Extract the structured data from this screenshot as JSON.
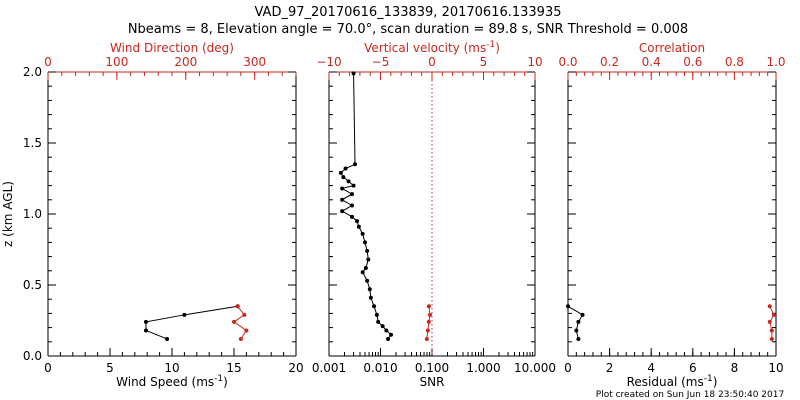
{
  "title_line1": "VAD_97_20170616_133839, 20170616.133935",
  "title_line2": "Nbeams = 8, Elevation angle = 70.0°, scan duration = 89.8 s, SNR Threshold = 0.008",
  "footer": "Plot created on Sun Jun 18 23:50:40 2017",
  "colors": {
    "black": "#000000",
    "red": "#c8281e"
  },
  "chart_data": [
    {
      "type": "line",
      "ylabel": "z (km AGL)",
      "ylim": [
        0,
        2.0
      ],
      "yticks": [
        0.0,
        0.5,
        1.0,
        1.5,
        2.0
      ],
      "yticklabels": [
        "0.0",
        "0.5",
        "1.0",
        "1.5",
        "2.0"
      ],
      "bottom_axis": {
        "label": "Wind Speed (ms",
        "label_sup": "-1",
        "label_end": ")",
        "xlim": [
          0,
          20
        ],
        "ticks": [
          0,
          5,
          10,
          15,
          20
        ],
        "ticklabels": [
          "0",
          "5",
          "10",
          "15",
          "20"
        ],
        "scale": "linear"
      },
      "top_axis": {
        "label": "Wind Direction (deg)",
        "xlim": [
          0,
          360
        ],
        "ticks": [
          0,
          100,
          200,
          300
        ],
        "ticklabels": [
          "0",
          "100",
          "200",
          "300"
        ],
        "scale": "linear"
      },
      "series": [
        {
          "axis": "bottom",
          "color": "#000000",
          "x": [
            15.3,
            11.0,
            7.9,
            7.9,
            9.6
          ],
          "y": [
            0.35,
            0.29,
            0.24,
            0.18,
            0.12
          ]
        },
        {
          "axis": "top",
          "color": "#c8281e",
          "x": [
            275,
            285,
            270,
            288,
            280
          ],
          "y": [
            0.35,
            0.29,
            0.24,
            0.18,
            0.12
          ]
        }
      ]
    },
    {
      "type": "line",
      "ylim": [
        0,
        2.0
      ],
      "bottom_axis": {
        "label": "SNR",
        "xlim": [
          0.001,
          10
        ],
        "ticks": [
          0.001,
          0.01,
          0.1,
          1,
          10
        ],
        "ticklabels": [
          "0.001",
          "0.010",
          "0.100",
          "1.000",
          "10.000"
        ],
        "scale": "log"
      },
      "top_axis": {
        "label": "Vertical velocity (ms",
        "label_sup": "-1",
        "label_end": ")",
        "xlim": [
          -10,
          10
        ],
        "ticks": [
          -10,
          -5,
          0,
          5,
          10
        ],
        "ticklabels": [
          "−10",
          "−5",
          "0",
          "5",
          "10"
        ],
        "scale": "linear",
        "reference_line": 0
      },
      "series": [
        {
          "axis": "bottom",
          "color": "#000000",
          "x": [
            0.014,
            0.016,
            0.013,
            0.011,
            0.009,
            0.0085,
            0.0075,
            0.0065,
            0.0062,
            0.0055,
            0.0045,
            0.0052,
            0.0058,
            0.0055,
            0.005,
            0.0045,
            0.0038,
            0.0035,
            0.0028,
            0.0018,
            0.0028,
            0.0018,
            0.0028,
            0.0018,
            0.003,
            0.0024,
            0.0019,
            0.0017,
            0.0021,
            0.0032,
            0.003
          ],
          "y": [
            0.12,
            0.15,
            0.18,
            0.21,
            0.24,
            0.29,
            0.35,
            0.41,
            0.47,
            0.53,
            0.59,
            0.62,
            0.68,
            0.74,
            0.8,
            0.86,
            0.91,
            0.95,
            0.98,
            1.02,
            1.06,
            1.1,
            1.14,
            1.18,
            1.2,
            1.23,
            1.26,
            1.29,
            1.32,
            1.35,
            1.99
          ]
        },
        {
          "axis": "top",
          "color": "#c8281e",
          "x": [
            -0.5,
            -0.4,
            -0.3,
            -0.2,
            -0.3
          ],
          "y": [
            0.12,
            0.18,
            0.24,
            0.29,
            0.35
          ]
        }
      ]
    },
    {
      "type": "line",
      "ylim": [
        0,
        2.0
      ],
      "bottom_axis": {
        "label": "Residual (ms",
        "label_sup": "-1",
        "label_end": ")",
        "xlim": [
          0,
          10
        ],
        "ticks": [
          0,
          2,
          4,
          6,
          8,
          10
        ],
        "ticklabels": [
          "0",
          "2",
          "4",
          "6",
          "8",
          "10"
        ],
        "scale": "linear"
      },
      "top_axis": {
        "label": "Correlation",
        "xlim": [
          0.0,
          1.0
        ],
        "ticks": [
          0.0,
          0.2,
          0.4,
          0.6,
          0.8,
          1.0
        ],
        "ticklabels": [
          "0.0",
          "0.2",
          "0.4",
          "0.6",
          "0.8",
          "1.0"
        ],
        "scale": "linear"
      },
      "series": [
        {
          "axis": "bottom",
          "color": "#000000",
          "x": [
            0.5,
            0.4,
            0.5,
            0.7,
            0.0
          ],
          "y": [
            0.12,
            0.18,
            0.24,
            0.29,
            0.35
          ]
        },
        {
          "axis": "top",
          "color": "#c8281e",
          "x": [
            0.98,
            0.98,
            0.97,
            0.99,
            0.97
          ],
          "y": [
            0.12,
            0.18,
            0.24,
            0.29,
            0.35
          ]
        }
      ]
    }
  ]
}
